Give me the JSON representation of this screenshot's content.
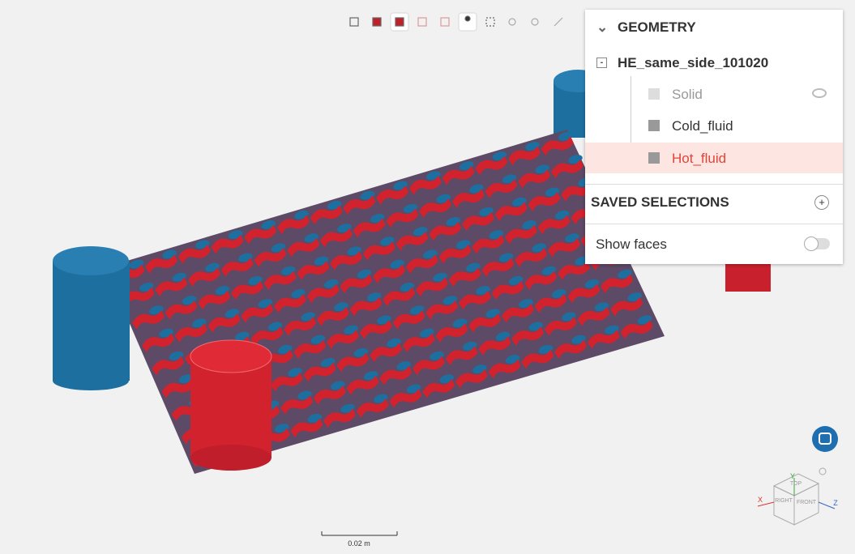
{
  "panel": {
    "header": "GEOMETRY",
    "root": "HE_same_side_101020",
    "items": [
      "Solid",
      "Cold_fluid",
      "Hot_fluid"
    ],
    "saved_selections": "SAVED SELECTIONS",
    "show_faces": "Show faces"
  },
  "viewport": {
    "scale_label": "0.02 m",
    "cube": {
      "top": "TOP",
      "front": "FRONT",
      "right": "RIGHT",
      "x": "X",
      "y": "Y",
      "z": "Z"
    }
  }
}
